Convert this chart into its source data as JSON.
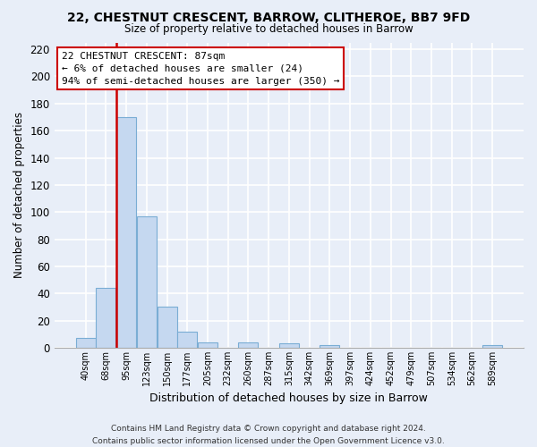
{
  "title": "22, CHESTNUT CRESCENT, BARROW, CLITHEROE, BB7 9FD",
  "subtitle": "Size of property relative to detached houses in Barrow",
  "xlabel": "Distribution of detached houses by size in Barrow",
  "ylabel": "Number of detached properties",
  "bin_labels": [
    "40sqm",
    "68sqm",
    "95sqm",
    "123sqm",
    "150sqm",
    "177sqm",
    "205sqm",
    "232sqm",
    "260sqm",
    "287sqm",
    "315sqm",
    "342sqm",
    "369sqm",
    "397sqm",
    "424sqm",
    "452sqm",
    "479sqm",
    "507sqm",
    "534sqm",
    "562sqm",
    "589sqm"
  ],
  "bar_heights": [
    7,
    44,
    170,
    97,
    30,
    12,
    4,
    0,
    4,
    0,
    3,
    0,
    2,
    0,
    0,
    0,
    0,
    0,
    0,
    0,
    2
  ],
  "bar_color": "#c5d8f0",
  "bar_edge_color": "#7aadd4",
  "vline_x": 1.5,
  "vline_color": "#cc0000",
  "ann_line1": "22 CHESTNUT CRESCENT: 87sqm",
  "ann_line2": "← 6% of detached houses are smaller (24)",
  "ann_line3": "94% of semi-detached houses are larger (350) →",
  "ylim": [
    0,
    225
  ],
  "yticks": [
    0,
    20,
    40,
    60,
    80,
    100,
    120,
    140,
    160,
    180,
    200,
    220
  ],
  "footer_line1": "Contains HM Land Registry data © Crown copyright and database right 2024.",
  "footer_line2": "Contains public sector information licensed under the Open Government Licence v3.0.",
  "bg_color": "#e8eef8",
  "grid_color": "#d0d8e8",
  "plot_bg": "#e8eef8"
}
